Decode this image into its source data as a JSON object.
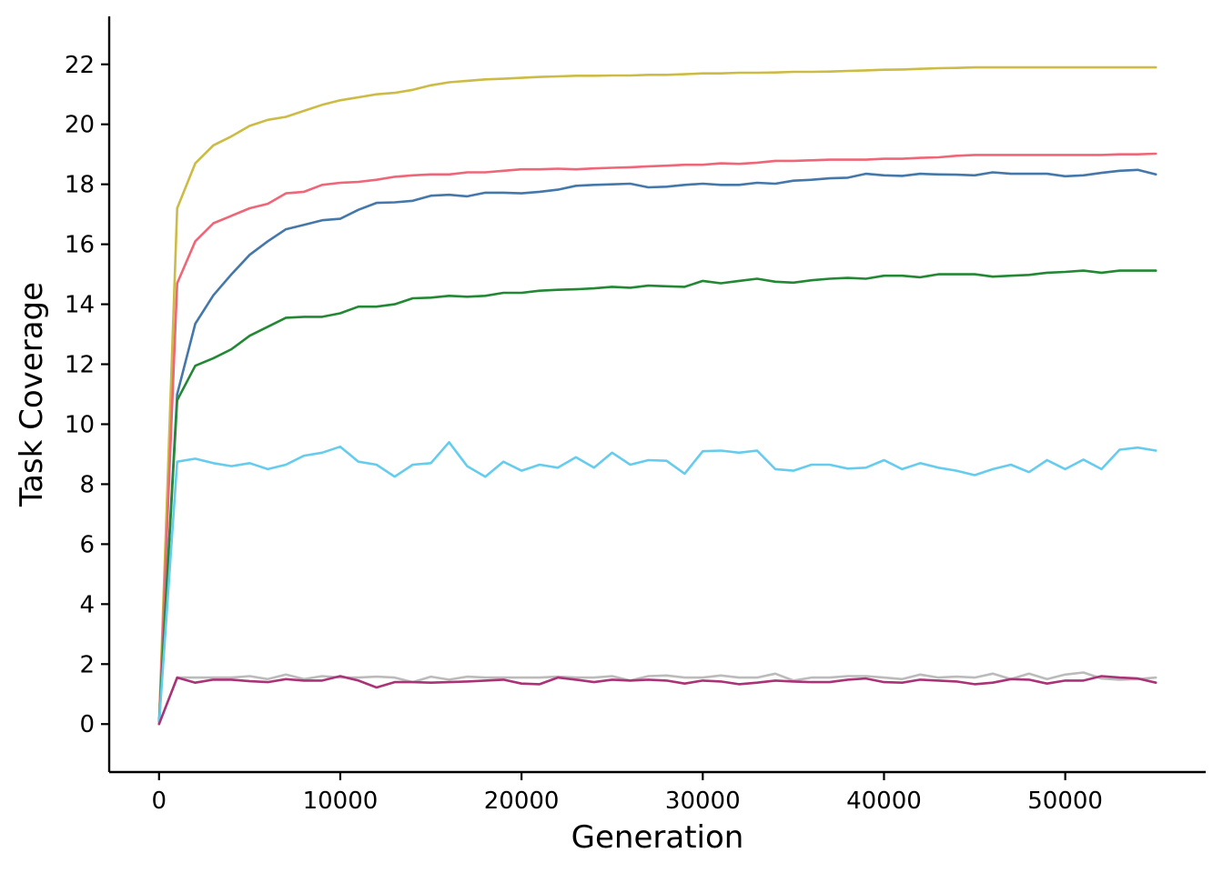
{
  "chart_data": {
    "type": "line",
    "title": "",
    "xlabel": "Generation",
    "ylabel": "Task Coverage",
    "xlim": [
      -2750,
      57750
    ],
    "ylim": [
      -1.6,
      23.6
    ],
    "xticks": [
      0,
      10000,
      20000,
      30000,
      40000,
      50000
    ],
    "yticks": [
      0,
      2,
      4,
      6,
      8,
      10,
      12,
      14,
      16,
      18,
      20,
      22
    ],
    "grid": false,
    "legend": "none",
    "x_start": 0,
    "x_step": 1000,
    "series": [
      {
        "color": "#CCBB44",
        "values": [
          0,
          17.2,
          18.7,
          19.3,
          19.6,
          19.95,
          20.15,
          20.25,
          20.45,
          20.65,
          20.8,
          20.9,
          21.0,
          21.05,
          21.15,
          21.3,
          21.4,
          21.45,
          21.5,
          21.52,
          21.55,
          21.58,
          21.6,
          21.62,
          21.62,
          21.63,
          21.63,
          21.65,
          21.65,
          21.67,
          21.7,
          21.7,
          21.72,
          21.72,
          21.73,
          21.75,
          21.75,
          21.76,
          21.78,
          21.8,
          21.82,
          21.83,
          21.85,
          21.87,
          21.88,
          21.9,
          21.9,
          21.9,
          21.9,
          21.9,
          21.9,
          21.9,
          21.9,
          21.9,
          21.9,
          21.9
        ]
      },
      {
        "color": "#EE6677",
        "values": [
          0,
          14.7,
          16.1,
          16.7,
          16.95,
          17.2,
          17.35,
          17.7,
          17.75,
          17.98,
          18.05,
          18.08,
          18.15,
          18.25,
          18.3,
          18.33,
          18.33,
          18.4,
          18.4,
          18.45,
          18.5,
          18.5,
          18.52,
          18.5,
          18.53,
          18.55,
          18.57,
          18.6,
          18.62,
          18.65,
          18.65,
          18.7,
          18.68,
          18.72,
          18.78,
          18.78,
          18.8,
          18.82,
          18.82,
          18.82,
          18.85,
          18.85,
          18.88,
          18.9,
          18.95,
          18.98,
          18.98,
          18.98,
          18.98,
          18.98,
          18.98,
          18.98,
          18.98,
          19.0,
          19.0,
          19.02
        ]
      },
      {
        "color": "#4477AA",
        "values": [
          0,
          11.0,
          13.35,
          14.3,
          15.0,
          15.65,
          16.1,
          16.5,
          16.65,
          16.8,
          16.85,
          17.15,
          17.38,
          17.4,
          17.45,
          17.62,
          17.65,
          17.6,
          17.72,
          17.72,
          17.7,
          17.75,
          17.82,
          17.95,
          17.98,
          18.0,
          18.02,
          17.9,
          17.92,
          17.98,
          18.02,
          17.98,
          17.98,
          18.05,
          18.02,
          18.12,
          18.15,
          18.2,
          18.22,
          18.35,
          18.3,
          18.28,
          18.35,
          18.33,
          18.32,
          18.3,
          18.4,
          18.35,
          18.35,
          18.35,
          18.27,
          18.3,
          18.38,
          18.45,
          18.48,
          18.33
        ]
      },
      {
        "color": "#228833",
        "values": [
          0,
          10.8,
          11.95,
          12.2,
          12.5,
          12.95,
          13.25,
          13.55,
          13.58,
          13.58,
          13.7,
          13.92,
          13.92,
          14.0,
          14.2,
          14.22,
          14.28,
          14.25,
          14.28,
          14.38,
          14.38,
          14.45,
          14.48,
          14.5,
          14.53,
          14.58,
          14.55,
          14.62,
          14.6,
          14.58,
          14.78,
          14.7,
          14.78,
          14.85,
          14.75,
          14.72,
          14.8,
          14.85,
          14.88,
          14.85,
          14.95,
          14.95,
          14.9,
          15.0,
          15.0,
          15.0,
          14.92,
          14.95,
          14.98,
          15.05,
          15.08,
          15.12,
          15.05,
          15.12,
          15.12,
          15.12
        ]
      },
      {
        "color": "#66CCEE",
        "values": [
          0,
          8.75,
          8.85,
          8.7,
          8.6,
          8.7,
          8.5,
          8.65,
          8.95,
          9.05,
          9.25,
          8.75,
          8.65,
          8.25,
          8.65,
          8.7,
          9.4,
          8.6,
          8.25,
          8.75,
          8.45,
          8.65,
          8.55,
          8.9,
          8.55,
          9.05,
          8.65,
          8.8,
          8.78,
          8.35,
          9.1,
          9.12,
          9.05,
          9.12,
          8.5,
          8.45,
          8.65,
          8.65,
          8.52,
          8.55,
          8.8,
          8.5,
          8.7,
          8.55,
          8.45,
          8.3,
          8.5,
          8.65,
          8.4,
          8.8,
          8.5,
          8.82,
          8.5,
          9.15,
          9.22,
          9.12
        ]
      },
      {
        "color": "#BBBBBB",
        "values": [
          0,
          1.55,
          1.55,
          1.55,
          1.55,
          1.6,
          1.5,
          1.65,
          1.5,
          1.6,
          1.55,
          1.55,
          1.58,
          1.55,
          1.4,
          1.58,
          1.48,
          1.58,
          1.55,
          1.55,
          1.55,
          1.55,
          1.58,
          1.55,
          1.55,
          1.6,
          1.45,
          1.6,
          1.62,
          1.55,
          1.55,
          1.62,
          1.55,
          1.55,
          1.68,
          1.45,
          1.55,
          1.55,
          1.6,
          1.6,
          1.55,
          1.5,
          1.65,
          1.55,
          1.58,
          1.55,
          1.68,
          1.5,
          1.68,
          1.5,
          1.65,
          1.72,
          1.52,
          1.48,
          1.5,
          1.55
        ]
      },
      {
        "color": "#AA3377",
        "values": [
          0,
          1.55,
          1.38,
          1.48,
          1.48,
          1.43,
          1.4,
          1.5,
          1.45,
          1.45,
          1.6,
          1.45,
          1.22,
          1.4,
          1.4,
          1.38,
          1.4,
          1.42,
          1.45,
          1.48,
          1.35,
          1.33,
          1.55,
          1.48,
          1.4,
          1.48,
          1.45,
          1.48,
          1.45,
          1.35,
          1.45,
          1.42,
          1.33,
          1.38,
          1.45,
          1.42,
          1.4,
          1.4,
          1.48,
          1.52,
          1.4,
          1.38,
          1.48,
          1.45,
          1.42,
          1.33,
          1.38,
          1.5,
          1.48,
          1.35,
          1.45,
          1.45,
          1.6,
          1.55,
          1.52,
          1.38
        ]
      }
    ]
  }
}
